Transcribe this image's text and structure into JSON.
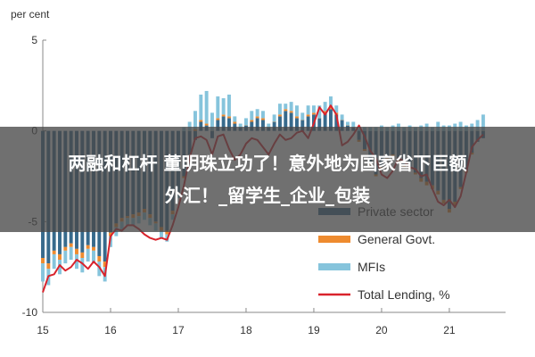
{
  "overlay": {
    "line1": "两融和杠杆 董明珠立功了！意外地为国家省下巨额",
    "line2": "外汇！_留学生_企业_包装"
  },
  "chart_data": {
    "type": "bar",
    "stacked": true,
    "title": "",
    "ylabel": "per cent",
    "ylim": [
      -10,
      5
    ],
    "yticks": [
      "5",
      "0",
      "-5",
      "-10"
    ],
    "xticks": [
      "15",
      "16",
      "17",
      "18",
      "19",
      "20",
      "21"
    ],
    "x_start": 2015.0,
    "x_step": 0.08333,
    "grid": false,
    "legend_position": "bottom-right",
    "colors": {
      "Private sector": "#376a8c",
      "General Govt.": "#ee8b2f",
      "MFIs": "#86c4dc",
      "Total Lending, %": "#d9232c"
    },
    "series": [
      {
        "name": "Private sector",
        "kind": "bar",
        "values": [
          -7.0,
          -7.3,
          -6.6,
          -6.8,
          -6.4,
          -6.2,
          -6.5,
          -6.7,
          -6.3,
          -6.4,
          -6.9,
          -7.2,
          -5.6,
          -5.1,
          -4.8,
          -4.7,
          -4.6,
          -4.5,
          -4.3,
          -4.6,
          -5.0,
          -5.3,
          -5.5,
          -4.4,
          -3.4,
          -2.5,
          -1.3,
          -0.5,
          0.5,
          0.3,
          -0.4,
          0.6,
          0.8,
          0.7,
          0.4,
          0.2,
          0.3,
          0.5,
          0.7,
          0.6,
          0.2,
          0.5,
          0.8,
          1.1,
          1.0,
          0.7,
          0.6,
          0.8,
          0.9,
          0.7,
          1.0,
          1.2,
          0.9,
          0.6,
          0.3,
          0.2,
          -0.5,
          -1.0,
          -1.8,
          -2.4,
          -2.0,
          -1.5,
          -1.3,
          -1.6,
          -1.9,
          -2.0,
          -2.3,
          -2.6,
          -2.8,
          -3.0,
          -3.3,
          -3.8,
          -4.3,
          -3.9,
          -3.1,
          -2.2,
          -1.2,
          -0.6,
          -0.4
        ]
      },
      {
        "name": "General Govt.",
        "kind": "bar",
        "values": [
          -0.3,
          -0.3,
          -0.2,
          -0.3,
          -0.2,
          -0.2,
          -0.3,
          -0.3,
          -0.2,
          -0.2,
          -0.3,
          -0.3,
          -0.2,
          -0.2,
          -0.2,
          -0.1,
          -0.2,
          -0.2,
          -0.2,
          -0.2,
          -0.1,
          -0.2,
          -0.2,
          -0.2,
          -0.1,
          -0.1,
          0.0,
          0.1,
          0.1,
          0.1,
          0.0,
          0.1,
          0.1,
          0.1,
          0.1,
          0.0,
          0.0,
          0.1,
          0.1,
          0.1,
          0.0,
          0.0,
          0.1,
          0.1,
          0.1,
          0.1,
          0.0,
          0.1,
          0.1,
          0.0,
          0.1,
          0.1,
          0.1,
          0.0,
          0.0,
          0.0,
          -0.1,
          -0.1,
          -0.1,
          -0.1,
          -0.1,
          -0.1,
          -0.1,
          -0.1,
          -0.1,
          -0.1,
          -0.1,
          -0.2,
          -0.2,
          -0.2,
          -0.2,
          -0.2,
          -0.2,
          -0.2,
          -0.1,
          -0.1,
          -0.1,
          0.0,
          0.0
        ]
      },
      {
        "name": "MFIs",
        "kind": "bar",
        "values": [
          -1.0,
          -0.9,
          -0.8,
          -0.8,
          -0.7,
          -0.7,
          -0.8,
          -0.8,
          -0.7,
          -0.7,
          -0.8,
          -0.8,
          -0.6,
          -0.5,
          -0.5,
          -0.4,
          -0.4,
          -0.4,
          -0.4,
          -0.4,
          -0.4,
          -0.4,
          -0.4,
          -0.3,
          -0.2,
          0.2,
          0.5,
          1.0,
          1.4,
          1.8,
          1.0,
          1.2,
          0.9,
          1.2,
          0.3,
          0.2,
          0.4,
          0.5,
          0.4,
          0.4,
          0.2,
          0.4,
          0.6,
          0.3,
          0.5,
          0.6,
          0.4,
          0.5,
          0.4,
          0.7,
          0.5,
          0.6,
          0.4,
          0.3,
          0.2,
          0.3,
          0.1,
          0.2,
          0.2,
          0.2,
          0.3,
          0.2,
          0.3,
          0.4,
          0.2,
          0.3,
          0.2,
          0.3,
          0.4,
          0.2,
          0.5,
          0.3,
          0.3,
          0.4,
          0.5,
          0.3,
          0.4,
          0.6,
          0.9
        ]
      },
      {
        "name": "Total Lending, %",
        "kind": "line",
        "values": [
          -8.9,
          -8.0,
          -7.9,
          -7.4,
          -7.7,
          -7.5,
          -7.1,
          -7.3,
          -7.6,
          -7.2,
          -7.5,
          -8.0,
          -5.8,
          -5.4,
          -5.5,
          -5.2,
          -5.2,
          -5.4,
          -5.7,
          -5.9,
          -6.0,
          -5.9,
          -6.0,
          -5.2,
          -4.2,
          -3.0,
          -1.5,
          -0.4,
          -0.3,
          -0.5,
          -1.3,
          -0.3,
          -0.2,
          -1.0,
          -1.6,
          -1.3,
          -0.7,
          -0.4,
          -0.5,
          -0.9,
          -1.3,
          -0.7,
          -0.2,
          -0.5,
          -0.4,
          -0.1,
          0.0,
          -0.4,
          0.4,
          1.3,
          0.9,
          1.4,
          0.9,
          -0.8,
          -0.6,
          -0.2,
          0.3,
          -0.3,
          -1.1,
          -1.5,
          -2.4,
          -2.6,
          -2.2,
          -1.5,
          -1.7,
          -2.0,
          -2.1,
          -2.5,
          -2.4,
          -3.2,
          -3.9,
          -4.1,
          -3.8,
          -4.2,
          -3.6,
          -2.3,
          -0.9,
          -0.5,
          -0.2
        ]
      }
    ]
  }
}
